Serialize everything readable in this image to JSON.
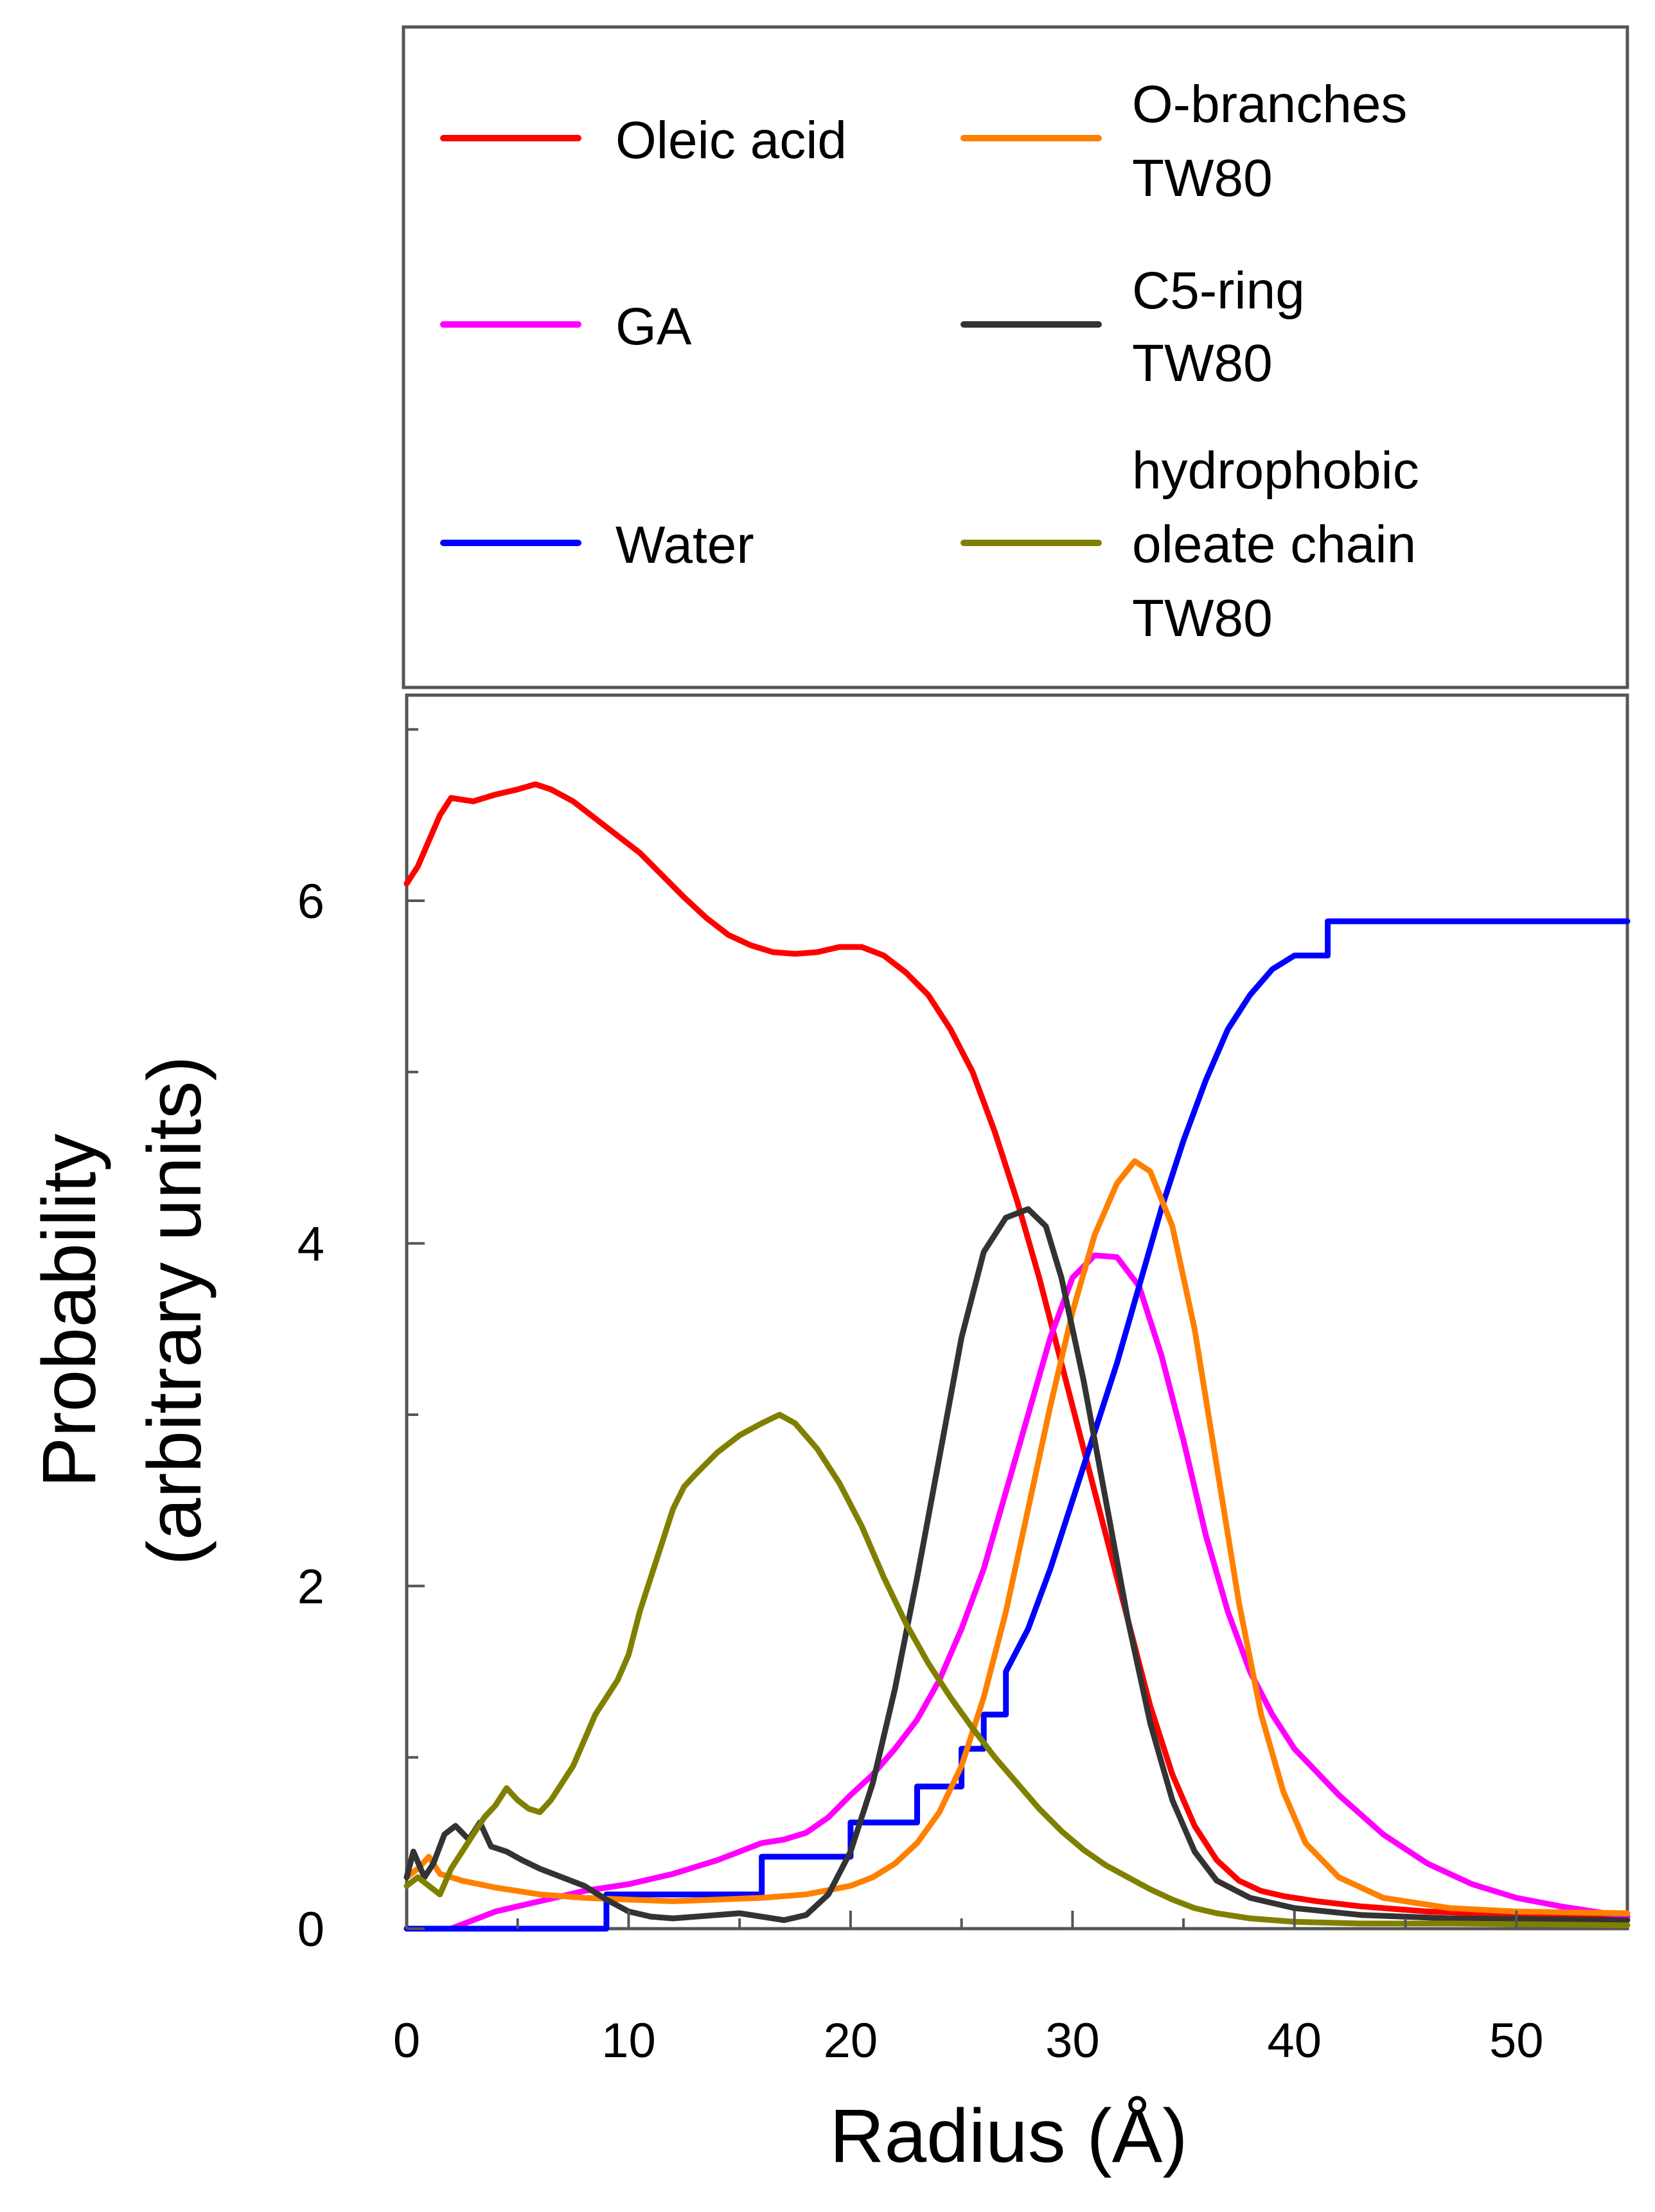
{
  "chart_data": {
    "type": "line",
    "xlabel": "Radius (Å)",
    "ylabel_lines": [
      "Probability",
      "(arbitrary units)"
    ],
    "xlim": [
      0,
      55
    ],
    "ylim": [
      0,
      7.2
    ],
    "x_ticks": [
      0,
      10,
      20,
      30,
      40,
      50
    ],
    "y_ticks_major": [
      0,
      2,
      4,
      6
    ],
    "y_ticks_minor": [
      1,
      3,
      5,
      7
    ],
    "grid": false,
    "legend_placement": "top (separate box above plot)",
    "series": [
      {
        "name": "Oleic acid",
        "color": "#ff0000",
        "points": [
          [
            0,
            6.1
          ],
          [
            0.5,
            6.2
          ],
          [
            1,
            6.35
          ],
          [
            1.5,
            6.5
          ],
          [
            2,
            6.6
          ],
          [
            3,
            6.58
          ],
          [
            4,
            6.62
          ],
          [
            5,
            6.65
          ],
          [
            5.8,
            6.68
          ],
          [
            6.5,
            6.65
          ],
          [
            7.5,
            6.58
          ],
          [
            8.5,
            6.48
          ],
          [
            9.5,
            6.38
          ],
          [
            10.5,
            6.28
          ],
          [
            11.5,
            6.15
          ],
          [
            12.5,
            6.02
          ],
          [
            13.5,
            5.9
          ],
          [
            14.5,
            5.8
          ],
          [
            15.5,
            5.74
          ],
          [
            16.5,
            5.7
          ],
          [
            17.5,
            5.69
          ],
          [
            18.5,
            5.7
          ],
          [
            19.5,
            5.73
          ],
          [
            20.5,
            5.73
          ],
          [
            21.5,
            5.68
          ],
          [
            22.5,
            5.58
          ],
          [
            23.5,
            5.45
          ],
          [
            24.5,
            5.25
          ],
          [
            25.5,
            5.0
          ],
          [
            26.5,
            4.65
          ],
          [
            27.5,
            4.25
          ],
          [
            28.5,
            3.8
          ],
          [
            29.5,
            3.3
          ],
          [
            30.5,
            2.8
          ],
          [
            31.5,
            2.3
          ],
          [
            32.5,
            1.8
          ],
          [
            33.5,
            1.3
          ],
          [
            34.5,
            0.9
          ],
          [
            35.5,
            0.6
          ],
          [
            36.5,
            0.4
          ],
          [
            37.5,
            0.28
          ],
          [
            38.5,
            0.22
          ],
          [
            39.5,
            0.19
          ],
          [
            41,
            0.16
          ],
          [
            43,
            0.13
          ],
          [
            46,
            0.1
          ],
          [
            50,
            0.08
          ],
          [
            55,
            0.07
          ]
        ]
      },
      {
        "name": "GA",
        "color": "#ff00ff",
        "points": [
          [
            0,
            0
          ],
          [
            2,
            0.0
          ],
          [
            3,
            0.05
          ],
          [
            4,
            0.1
          ],
          [
            5,
            0.13
          ],
          [
            6,
            0.16
          ],
          [
            7,
            0.19
          ],
          [
            8,
            0.22
          ],
          [
            9,
            0.24
          ],
          [
            10,
            0.26
          ],
          [
            11,
            0.29
          ],
          [
            12,
            0.32
          ],
          [
            13,
            0.36
          ],
          [
            14,
            0.4
          ],
          [
            15,
            0.45
          ],
          [
            16,
            0.5
          ],
          [
            17,
            0.52
          ],
          [
            18,
            0.56
          ],
          [
            19,
            0.65
          ],
          [
            20,
            0.78
          ],
          [
            21,
            0.9
          ],
          [
            22,
            1.05
          ],
          [
            23,
            1.22
          ],
          [
            24,
            1.45
          ],
          [
            25,
            1.75
          ],
          [
            26,
            2.1
          ],
          [
            27,
            2.55
          ],
          [
            28,
            3.0
          ],
          [
            29,
            3.45
          ],
          [
            30,
            3.8
          ],
          [
            31,
            3.93
          ],
          [
            32,
            3.92
          ],
          [
            33,
            3.75
          ],
          [
            34,
            3.35
          ],
          [
            35,
            2.85
          ],
          [
            36,
            2.3
          ],
          [
            37,
            1.85
          ],
          [
            38,
            1.5
          ],
          [
            39,
            1.25
          ],
          [
            40,
            1.05
          ],
          [
            42,
            0.78
          ],
          [
            44,
            0.55
          ],
          [
            46,
            0.38
          ],
          [
            48,
            0.26
          ],
          [
            50,
            0.18
          ],
          [
            52,
            0.13
          ],
          [
            55,
            0.07
          ]
        ]
      },
      {
        "name": "Water",
        "color": "#0000ff",
        "points": [
          [
            0,
            0
          ],
          [
            9,
            0
          ],
          [
            9,
            0.2
          ],
          [
            16,
            0.2
          ],
          [
            16,
            0.42
          ],
          [
            20,
            0.42
          ],
          [
            20,
            0.62
          ],
          [
            23,
            0.62
          ],
          [
            23,
            0.83
          ],
          [
            25,
            0.83
          ],
          [
            25,
            1.05
          ],
          [
            26,
            1.05
          ],
          [
            26,
            1.25
          ],
          [
            27,
            1.25
          ],
          [
            27,
            1.5
          ],
          [
            28,
            1.75
          ],
          [
            29,
            2.1
          ],
          [
            30,
            2.5
          ],
          [
            31,
            2.9
          ],
          [
            32,
            3.3
          ],
          [
            33,
            3.75
          ],
          [
            34,
            4.2
          ],
          [
            35,
            4.6
          ],
          [
            36,
            4.95
          ],
          [
            37,
            5.25
          ],
          [
            38,
            5.45
          ],
          [
            39,
            5.6
          ],
          [
            40,
            5.68
          ],
          [
            41.5,
            5.68
          ],
          [
            41.5,
            5.88
          ],
          [
            55,
            5.88
          ]
        ]
      },
      {
        "name": "O-branches\nTW80",
        "color": "#ff8000",
        "points": [
          [
            0,
            0.3
          ],
          [
            0.5,
            0.35
          ],
          [
            1,
            0.42
          ],
          [
            1.5,
            0.32
          ],
          [
            2.5,
            0.28
          ],
          [
            4,
            0.24
          ],
          [
            6,
            0.2
          ],
          [
            8,
            0.18
          ],
          [
            10,
            0.17
          ],
          [
            12,
            0.16
          ],
          [
            14,
            0.17
          ],
          [
            16,
            0.18
          ],
          [
            18,
            0.2
          ],
          [
            20,
            0.25
          ],
          [
            21,
            0.3
          ],
          [
            22,
            0.38
          ],
          [
            23,
            0.5
          ],
          [
            24,
            0.68
          ],
          [
            25,
            0.95
          ],
          [
            26,
            1.35
          ],
          [
            27,
            1.85
          ],
          [
            28,
            2.45
          ],
          [
            29,
            3.05
          ],
          [
            30,
            3.6
          ],
          [
            31,
            4.05
          ],
          [
            32,
            4.35
          ],
          [
            32.8,
            4.48
          ],
          [
            33.5,
            4.42
          ],
          [
            34.5,
            4.1
          ],
          [
            35.5,
            3.5
          ],
          [
            36.5,
            2.7
          ],
          [
            37.5,
            1.9
          ],
          [
            38.5,
            1.25
          ],
          [
            39.5,
            0.8
          ],
          [
            40.5,
            0.5
          ],
          [
            42,
            0.3
          ],
          [
            44,
            0.18
          ],
          [
            47,
            0.12
          ],
          [
            50,
            0.1
          ],
          [
            55,
            0.09
          ]
        ]
      },
      {
        "name": "C5-ring\nTW80",
        "color": "#333333",
        "points": [
          [
            0,
            0.3
          ],
          [
            0.3,
            0.45
          ],
          [
            0.8,
            0.3
          ],
          [
            1.2,
            0.38
          ],
          [
            1.7,
            0.55
          ],
          [
            2.2,
            0.6
          ],
          [
            2.8,
            0.52
          ],
          [
            3.3,
            0.62
          ],
          [
            3.8,
            0.48
          ],
          [
            4.5,
            0.45
          ],
          [
            5.2,
            0.4
          ],
          [
            6,
            0.35
          ],
          [
            7,
            0.3
          ],
          [
            8,
            0.25
          ],
          [
            9,
            0.17
          ],
          [
            10,
            0.1
          ],
          [
            11,
            0.07
          ],
          [
            12,
            0.06
          ],
          [
            13,
            0.07
          ],
          [
            14,
            0.08
          ],
          [
            15,
            0.09
          ],
          [
            16,
            0.07
          ],
          [
            17,
            0.05
          ],
          [
            18,
            0.08
          ],
          [
            19,
            0.2
          ],
          [
            20,
            0.45
          ],
          [
            21,
            0.85
          ],
          [
            22,
            1.4
          ],
          [
            23,
            2.05
          ],
          [
            24,
            2.75
          ],
          [
            25,
            3.45
          ],
          [
            26,
            3.95
          ],
          [
            27,
            4.15
          ],
          [
            28,
            4.2
          ],
          [
            28.8,
            4.1
          ],
          [
            29.5,
            3.8
          ],
          [
            30.5,
            3.2
          ],
          [
            31.5,
            2.5
          ],
          [
            32.5,
            1.8
          ],
          [
            33.5,
            1.2
          ],
          [
            34.5,
            0.75
          ],
          [
            35.5,
            0.45
          ],
          [
            36.5,
            0.28
          ],
          [
            38,
            0.18
          ],
          [
            40,
            0.12
          ],
          [
            43,
            0.08
          ],
          [
            47,
            0.06
          ],
          [
            55,
            0.05
          ]
        ]
      },
      {
        "name": "hydrophobic\noleate chain\nTW80",
        "color": "#808000",
        "points": [
          [
            0,
            0.25
          ],
          [
            0.5,
            0.3
          ],
          [
            1,
            0.25
          ],
          [
            1.5,
            0.2
          ],
          [
            2,
            0.35
          ],
          [
            2.5,
            0.45
          ],
          [
            3,
            0.55
          ],
          [
            3.5,
            0.65
          ],
          [
            4,
            0.72
          ],
          [
            4.5,
            0.82
          ],
          [
            5,
            0.75
          ],
          [
            5.5,
            0.7
          ],
          [
            6,
            0.68
          ],
          [
            6.5,
            0.75
          ],
          [
            7,
            0.85
          ],
          [
            7.5,
            0.95
          ],
          [
            8,
            1.1
          ],
          [
            8.5,
            1.25
          ],
          [
            9,
            1.35
          ],
          [
            9.5,
            1.45
          ],
          [
            10,
            1.6
          ],
          [
            10.5,
            1.85
          ],
          [
            11,
            2.05
          ],
          [
            11.5,
            2.25
          ],
          [
            12,
            2.45
          ],
          [
            12.5,
            2.58
          ],
          [
            13,
            2.65
          ],
          [
            14,
            2.78
          ],
          [
            15,
            2.88
          ],
          [
            16,
            2.95
          ],
          [
            16.8,
            3.0
          ],
          [
            17.5,
            2.95
          ],
          [
            18.5,
            2.8
          ],
          [
            19.5,
            2.6
          ],
          [
            20.5,
            2.35
          ],
          [
            21.5,
            2.05
          ],
          [
            22.5,
            1.78
          ],
          [
            23.5,
            1.55
          ],
          [
            24.5,
            1.35
          ],
          [
            25.5,
            1.17
          ],
          [
            26.5,
            1.0
          ],
          [
            27.5,
            0.85
          ],
          [
            28.5,
            0.7
          ],
          [
            29.5,
            0.57
          ],
          [
            30.5,
            0.46
          ],
          [
            31.5,
            0.37
          ],
          [
            32.5,
            0.3
          ],
          [
            33.5,
            0.23
          ],
          [
            34.5,
            0.17
          ],
          [
            35.5,
            0.12
          ],
          [
            36.5,
            0.09
          ],
          [
            38,
            0.06
          ],
          [
            40,
            0.04
          ],
          [
            43,
            0.03
          ],
          [
            47,
            0.03
          ],
          [
            55,
            0.02
          ]
        ]
      }
    ]
  }
}
